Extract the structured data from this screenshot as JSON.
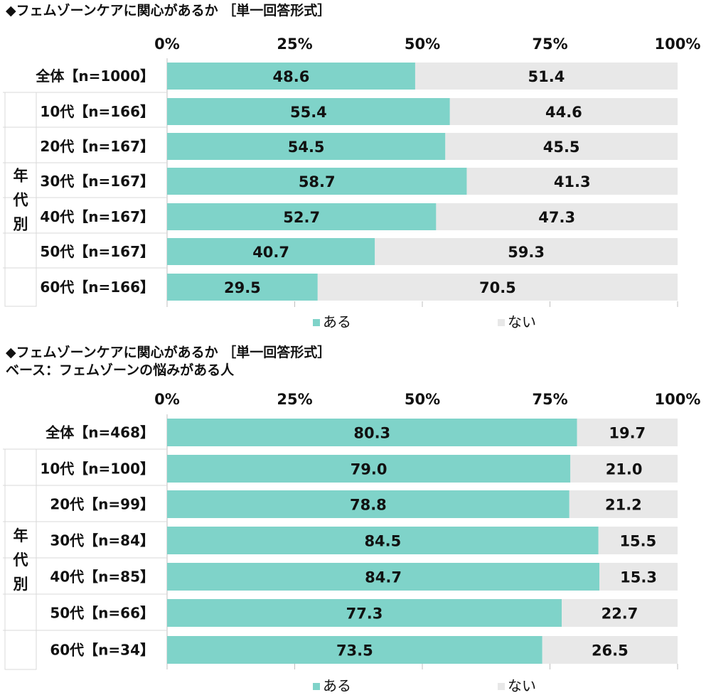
{
  "chart_data": [
    {
      "type": "bar",
      "orientation": "horizontal",
      "stacked": true,
      "title": "◆フェムゾーンケアに関心があるか ［単一回答形式］",
      "subtitle": "",
      "xlim": [
        0,
        100
      ],
      "ticks": [
        "0%",
        "25%",
        "50%",
        "75%",
        "100%"
      ],
      "tick_values": [
        0,
        25,
        50,
        75,
        100
      ],
      "group_label": "年代別",
      "categories": [
        "全体【n=1000】",
        "10代【n=166】",
        "20代【n=167】",
        "30代【n=167】",
        "40代【n=167】",
        "50代【n=167】",
        "60代【n=166】"
      ],
      "series": [
        {
          "name": "ある",
          "color": "#7fd3c9",
          "values": [
            48.6,
            55.4,
            54.5,
            58.7,
            52.7,
            40.7,
            29.5
          ],
          "labels": [
            "48.6",
            "55.4",
            "54.5",
            "58.7",
            "52.7",
            "40.7",
            "29.5"
          ]
        },
        {
          "name": "ない",
          "color": "#e8e8e8",
          "values": [
            51.4,
            44.6,
            45.5,
            41.3,
            47.3,
            59.3,
            70.5
          ],
          "labels": [
            "51.4",
            "44.6",
            "45.5",
            "41.3",
            "47.3",
            "59.3",
            "70.5"
          ]
        }
      ]
    },
    {
      "type": "bar",
      "orientation": "horizontal",
      "stacked": true,
      "title": "◆フェムゾーンケアに関心があるか ［単一回答形式］",
      "subtitle": "ベース：フェムゾーンの悩みがある人",
      "xlim": [
        0,
        100
      ],
      "ticks": [
        "0%",
        "25%",
        "50%",
        "75%",
        "100%"
      ],
      "tick_values": [
        0,
        25,
        50,
        75,
        100
      ],
      "group_label": "年代別",
      "categories": [
        "全体【n=468】",
        "10代【n=100】",
        "20代【n=99】",
        "30代【n=84】",
        "40代【n=85】",
        "50代【n=66】",
        "60代【n=34】"
      ],
      "series": [
        {
          "name": "ある",
          "color": "#7fd3c9",
          "values": [
            80.3,
            79.0,
            78.8,
            84.5,
            84.7,
            77.3,
            73.5
          ],
          "labels": [
            "80.3",
            "79.0",
            "78.8",
            "84.5",
            "84.7",
            "77.3",
            "73.5"
          ]
        },
        {
          "name": "ない",
          "color": "#e8e8e8",
          "values": [
            19.7,
            21.0,
            21.2,
            15.5,
            15.3,
            22.7,
            26.5
          ],
          "labels": [
            "19.7",
            "21.0",
            "21.2",
            "15.5",
            "15.3",
            "22.7",
            "26.5"
          ]
        }
      ]
    }
  ]
}
